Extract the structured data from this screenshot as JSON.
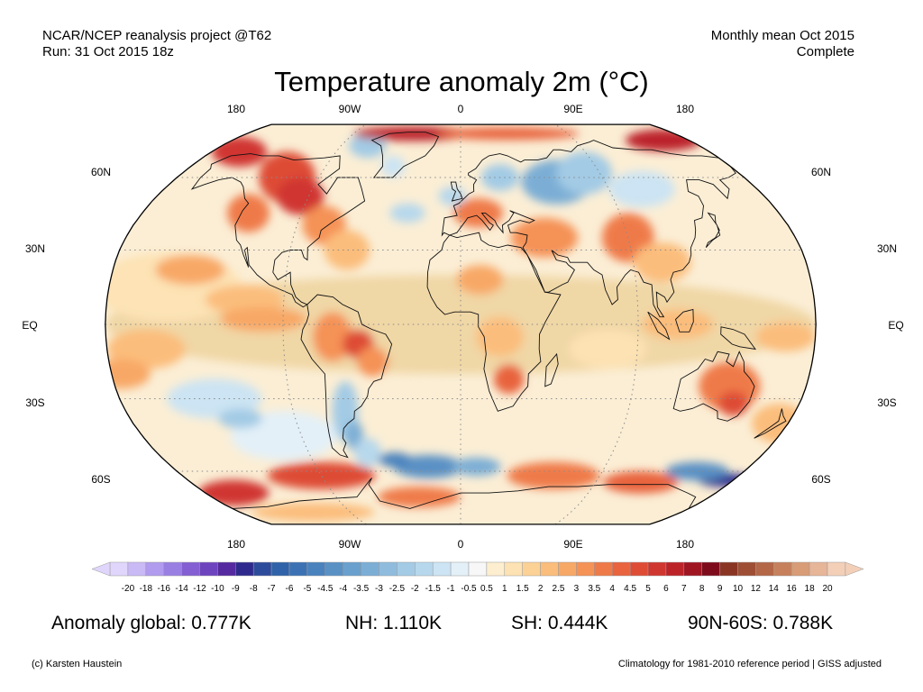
{
  "header": {
    "project": "NCAR/NCEP reanalysis project @T62",
    "run": "Run: 31 Oct 2015 18z",
    "period": "Monthly mean Oct 2015",
    "status": "Complete"
  },
  "title": "Temperature anomaly 2m (°C)",
  "map": {
    "projection": "robinson",
    "lon_labels": [
      "180",
      "90W",
      "0",
      "90E",
      "180"
    ],
    "lat_labels": [
      "60N",
      "30N",
      "EQ",
      "30S",
      "60S"
    ],
    "grid": true
  },
  "colorbar": {
    "labels": [
      "-20",
      "-18",
      "-16",
      "-14",
      "-12",
      "-10",
      "-9",
      "-8",
      "-7",
      "-6",
      "-5",
      "-4.5",
      "-4",
      "-3.5",
      "-3",
      "-2.5",
      "-2",
      "-1.5",
      "-1",
      "-0.5",
      "0.5",
      "1",
      "1.5",
      "2",
      "2.5",
      "3",
      "3.5",
      "4",
      "4.5",
      "5",
      "6",
      "7",
      "8",
      "9",
      "10",
      "12",
      "14",
      "16",
      "18",
      "20"
    ],
    "colors": [
      "#e0d6fb",
      "#c9b9f5",
      "#b09bee",
      "#9a7fe3",
      "#835fd3",
      "#6e44be",
      "#55299f",
      "#2e2a8d",
      "#2d4b9b",
      "#2f62a8",
      "#3c72b4",
      "#4a82bd",
      "#5a91c5",
      "#6aa0cd",
      "#7caed5",
      "#8fbcdd",
      "#a3cbe5",
      "#b7d8ec",
      "#cce4f3",
      "#e3f0f8",
      "#f7f7f7",
      "#fdeecf",
      "#fde2b3",
      "#fcd196",
      "#fbbd7c",
      "#f8a866",
      "#f59256",
      "#ef7a49",
      "#e8633e",
      "#de4c36",
      "#d03630",
      "#bc2329",
      "#a01522",
      "#7e0b1b",
      "#8a3524",
      "#9e4e34",
      "#b36747",
      "#c6815c",
      "#d89c76",
      "#e7b597",
      "#f3cfb8"
    ]
  },
  "stats": {
    "global": "Anomaly global: 0.777K",
    "nh": "NH: 1.110K",
    "sh": "SH: 0.444K",
    "polar": "90N-60S: 0.788K"
  },
  "footer": {
    "credit": "(c) Karsten Haustein",
    "note": "Climatology for 1981-2010 reference period | GISS adjusted"
  }
}
